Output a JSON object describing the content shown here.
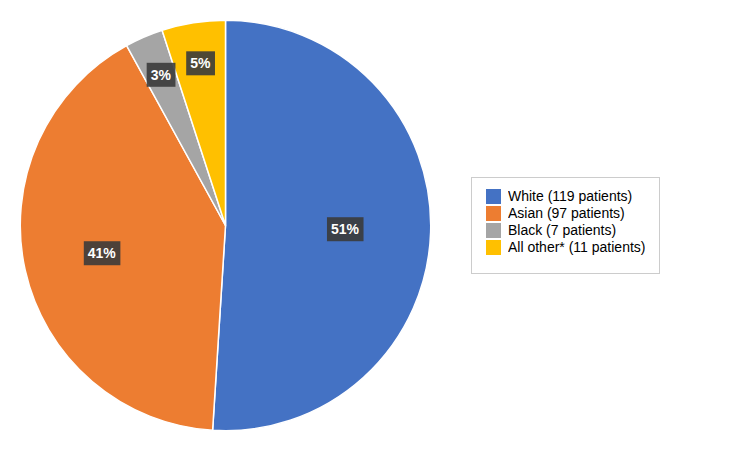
{
  "chart_data": {
    "type": "pie",
    "categories": [
      "White (119 patients)",
      "Asian (97 patients)",
      "Black (7 patients)",
      "All other* (11 patients)"
    ],
    "values": [
      51,
      41,
      3,
      5
    ],
    "value_labels": [
      "51%",
      "41%",
      "3%",
      "5%"
    ],
    "colors": [
      "#4472C4",
      "#ED7D31",
      "#A5A5A5",
      "#FFC000"
    ],
    "data_labels": true,
    "legend": "right"
  }
}
